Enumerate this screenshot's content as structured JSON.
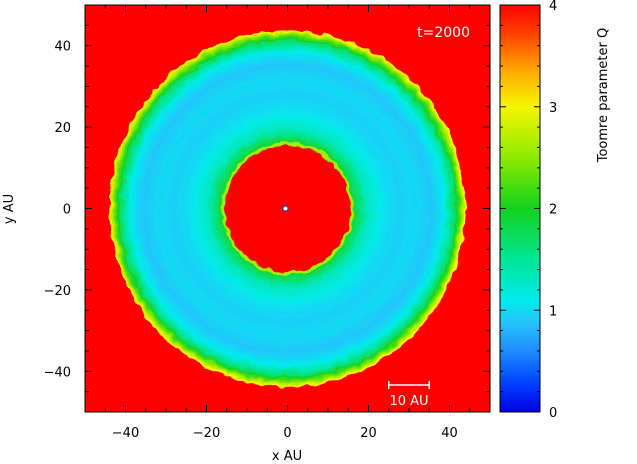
{
  "chart_data": {
    "type": "heatmap",
    "title": "",
    "annotation": "t=2000",
    "scale_bar_label": "10 AU",
    "scale_bar_length_au": 10,
    "xlabel": "x AU",
    "ylabel": "y AU",
    "xlim": [
      -50,
      50
    ],
    "ylim": [
      -50,
      50
    ],
    "x_ticks": [
      -40,
      -20,
      0,
      20,
      40
    ],
    "y_ticks": [
      -40,
      -20,
      0,
      20,
      40
    ],
    "x_tick_labels": [
      "−40",
      "−20",
      "0",
      "20",
      "40"
    ],
    "y_tick_labels": [
      "−40",
      "−20",
      "0",
      "20",
      "40"
    ],
    "colorbar": {
      "label": "Toomre parameter Q",
      "range": [
        0,
        4
      ],
      "ticks": [
        0,
        1,
        2,
        3,
        4
      ],
      "tick_labels": [
        "0",
        "1",
        "2",
        "3",
        "4"
      ]
    },
    "disc": {
      "center": [
        0,
        0
      ],
      "inner_gap_radius_au": 16,
      "outer_radius_au": 44,
      "q_inside_gap": 4,
      "q_outside_disc": 4,
      "q_profile": [
        {
          "r": 16,
          "q": 2.0
        },
        {
          "r": 20,
          "q": 1.3
        },
        {
          "r": 24,
          "q": 1.05
        },
        {
          "r": 28,
          "q": 0.95
        },
        {
          "r": 32,
          "q": 1.0
        },
        {
          "r": 36,
          "q": 0.9
        },
        {
          "r": 39,
          "q": 1.1
        },
        {
          "r": 41.5,
          "q": 1.7
        },
        {
          "r": 43,
          "q": 2.4
        },
        {
          "r": 44.5,
          "q": 3.3
        }
      ]
    },
    "central_star": {
      "x": -0.5,
      "y": 0
    }
  }
}
